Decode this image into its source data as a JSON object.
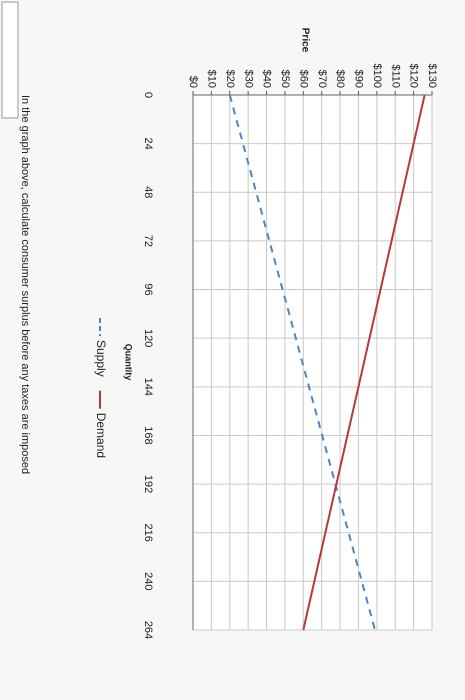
{
  "chart_data": {
    "type": "line",
    "y_label": "Price",
    "x_label": "Quantity",
    "x": [
      0,
      264
    ],
    "series": [
      {
        "name": "Supply",
        "color": "#4f86c0",
        "dashed": true,
        "values": [
          20,
          99
        ]
      },
      {
        "name": "Demand",
        "color": "#b33a3a",
        "dashed": false,
        "values": [
          126,
          60
        ]
      }
    ],
    "xlim": [
      0,
      264
    ],
    "xticks": [
      0,
      24,
      48,
      72,
      96,
      120,
      144,
      168,
      192,
      216,
      240,
      264
    ],
    "ylim": [
      0,
      130
    ],
    "yticks": [
      {
        "value": 0,
        "label": "$0"
      },
      {
        "value": 10,
        "label": "$10"
      },
      {
        "value": 20,
        "label": "$20"
      },
      {
        "value": 30,
        "label": "$30"
      },
      {
        "value": 40,
        "label": "$40"
      },
      {
        "value": 50,
        "label": "$50"
      },
      {
        "value": 60,
        "label": "$60"
      },
      {
        "value": 70,
        "label": "$70"
      },
      {
        "value": 80,
        "label": "$80"
      },
      {
        "value": 90,
        "label": "$90"
      },
      {
        "value": 100,
        "label": "$100"
      },
      {
        "value": 110,
        "label": "$110"
      },
      {
        "value": 120,
        "label": "$120"
      },
      {
        "value": 130,
        "label": "$130"
      }
    ],
    "grid": true
  },
  "question": "In the graph above, calculate consumer surplus before any taxes are imposed"
}
